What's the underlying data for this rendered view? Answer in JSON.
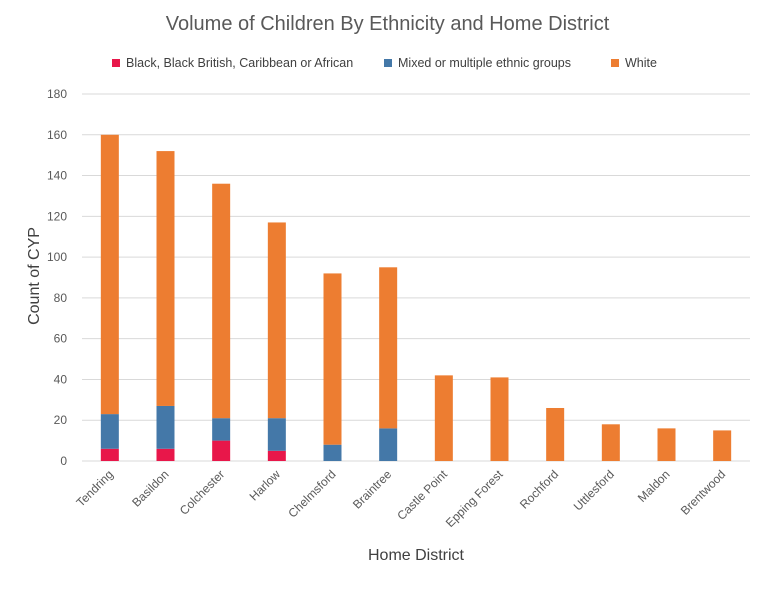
{
  "chart_data": {
    "type": "bar",
    "stacked": true,
    "title": "Volume of Children By Ethnicity and Home District",
    "xlabel": "Home District",
    "ylabel": "Count of CYP",
    "ylim": [
      0,
      180
    ],
    "yticks": [
      0,
      20,
      40,
      60,
      80,
      100,
      120,
      140,
      160,
      180
    ],
    "grid": true,
    "legend_position": "top",
    "categories": [
      "Tendring",
      "Basildon",
      "Colchester",
      "Harlow",
      "Chelmsford",
      "Braintree",
      "Castle Point",
      "Epping Forest",
      "Rochford",
      "Uttlesford",
      "Maldon",
      "Brentwood"
    ],
    "series": [
      {
        "name": "Black, Black British, Caribbean or African",
        "color": "#e8174a",
        "values": [
          6,
          6,
          10,
          5,
          0,
          0,
          0,
          0,
          0,
          0,
          0,
          0
        ]
      },
      {
        "name": "Mixed or multiple ethnic groups",
        "color": "#4478a8",
        "values": [
          17,
          21,
          11,
          16,
          8,
          16,
          0,
          0,
          0,
          0,
          0,
          0
        ]
      },
      {
        "name": "White",
        "color": "#ed7d31",
        "values": [
          137,
          125,
          115,
          96,
          84,
          79,
          42,
          41,
          26,
          18,
          16,
          15
        ]
      }
    ]
  },
  "colors": {
    "gridline": "#d9d9d9",
    "text": "#595959"
  }
}
